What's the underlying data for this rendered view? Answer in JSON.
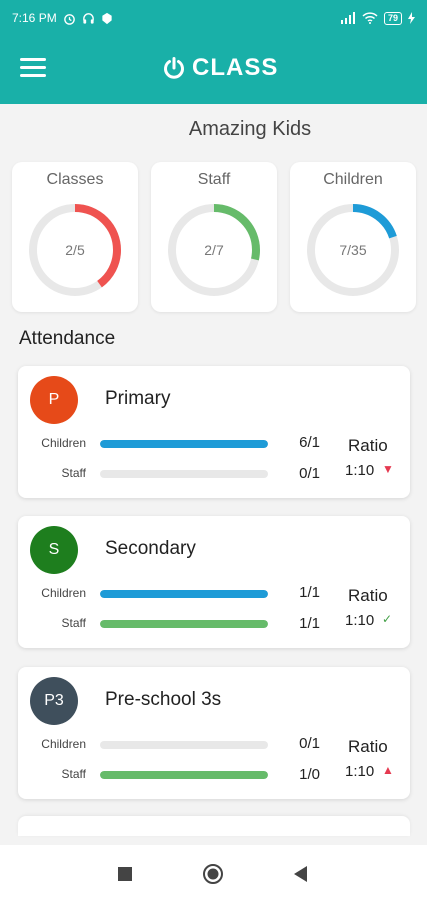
{
  "status_bar": {
    "time": "7:16 PM",
    "battery": "79"
  },
  "app_bar": {
    "brand": "CLASS"
  },
  "school": {
    "name": "Amazing Kids"
  },
  "stats": [
    {
      "label": "Classes",
      "value_text": "2/5",
      "fraction": 0.4,
      "color": "#ef5350"
    },
    {
      "label": "Staff",
      "value_text": "2/7",
      "fraction": 0.2857,
      "color": "#66bb6a"
    },
    {
      "label": "Children",
      "value_text": "7/35",
      "fraction": 0.2,
      "color": "#1e9bd7"
    }
  ],
  "attendance": {
    "title": "Attendance",
    "ratio_title": "Ratio",
    "row_labels": {
      "children": "Children",
      "staff": "Staff"
    },
    "classes": [
      {
        "initial": "P",
        "name": "Primary",
        "avatar_color": "#e64a19",
        "children_count": "6/1",
        "children_fill": 1.0,
        "staff_count": "0/1",
        "staff_fill": 0.0,
        "ratio": "1:10",
        "ratio_status": "under",
        "ratio_symbol": "▼",
        "ratio_color": "#e53950"
      },
      {
        "initial": "S",
        "name": "Secondary",
        "avatar_color": "#1e7e1e",
        "children_count": "1/1",
        "children_fill": 1.0,
        "staff_count": "1/1",
        "staff_fill": 1.0,
        "ratio": "1:10",
        "ratio_status": "ok",
        "ratio_symbol": "✓",
        "ratio_color": "#43a047"
      },
      {
        "initial": "P3",
        "name": "Pre-school 3s",
        "avatar_color": "#3f4f5c",
        "children_count": "0/1",
        "children_fill": 0.0,
        "staff_count": "1/0",
        "staff_fill": 1.0,
        "ratio": "1:10",
        "ratio_status": "over",
        "ratio_symbol": "▲",
        "ratio_color": "#e53950"
      }
    ]
  },
  "colors": {
    "primary": "#19b0a8",
    "children_bar": "#1e9bd7",
    "staff_bar": "#66bb6a"
  },
  "nav": {
    "icons": [
      "recent-apps-icon",
      "home-icon",
      "back-icon"
    ]
  }
}
